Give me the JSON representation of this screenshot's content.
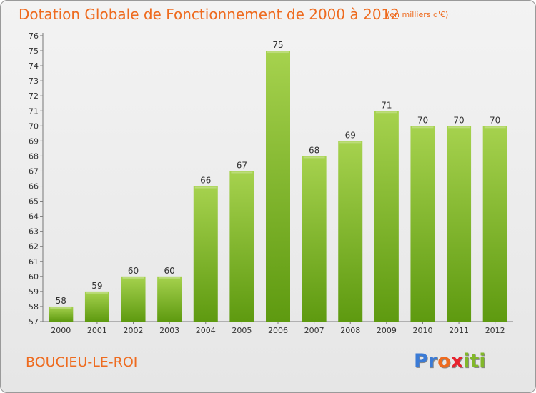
{
  "header": {
    "title": "Dotation Globale de Fonctionnement de 2000 à 2012",
    "subtitle": "(en milliers d'€)"
  },
  "footer": {
    "commune": "BOUCIEU-LE-ROI",
    "logo": [
      "P",
      "r",
      "o",
      "x",
      "i",
      "t",
      "i"
    ]
  },
  "colors": {
    "bar_top": "#a6d24e",
    "bar_bottom": "#5e9a10",
    "text_accent": "#ee6b1f",
    "logo": [
      "#3b7bd6",
      "#3b7bd6",
      "#ee6b1f",
      "#e8242f",
      "#82b82a",
      "#82b82a",
      "#82b82a"
    ]
  },
  "chart_data": {
    "type": "bar",
    "title": "Dotation Globale de Fonctionnement de 2000 à 2012",
    "subtitle": "(en milliers d'€)",
    "xlabel": "",
    "ylabel": "",
    "categories": [
      "2000",
      "2001",
      "2002",
      "2003",
      "2004",
      "2005",
      "2006",
      "2007",
      "2008",
      "2009",
      "2010",
      "2011",
      "2012"
    ],
    "values": [
      58,
      59,
      60,
      60,
      66,
      67,
      75,
      68,
      69,
      71,
      70,
      70,
      70
    ],
    "ylim": [
      57,
      76
    ],
    "yticks": [
      57,
      58,
      59,
      60,
      61,
      62,
      63,
      64,
      65,
      66,
      67,
      68,
      69,
      70,
      71,
      72,
      73,
      74,
      75,
      76
    ],
    "grid": false,
    "legend": "none"
  }
}
